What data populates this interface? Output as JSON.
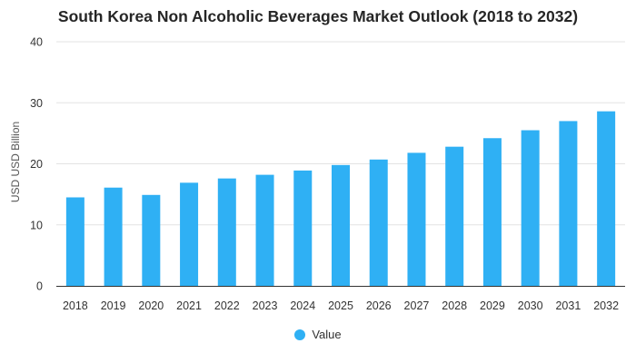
{
  "chart_data": {
    "type": "bar",
    "title": "South Korea Non Alcoholic Beverages Market Outlook (2018 to 2032)",
    "xlabel": "",
    "ylabel": "USD USD Billion",
    "ylim": [
      0,
      40
    ],
    "yticks": [
      0,
      10,
      20,
      30,
      40
    ],
    "grid": true,
    "legend_position": "bottom",
    "categories": [
      "2018",
      "2019",
      "2020",
      "2021",
      "2022",
      "2023",
      "2024",
      "2025",
      "2026",
      "2027",
      "2028",
      "2029",
      "2030",
      "2031",
      "2032"
    ],
    "series": [
      {
        "name": "Value",
        "color": "#2fb0f4",
        "values": [
          14.5,
          16.1,
          14.9,
          16.9,
          17.6,
          18.2,
          18.9,
          19.8,
          20.7,
          21.8,
          22.8,
          24.2,
          25.5,
          27.0,
          28.6
        ]
      }
    ]
  }
}
